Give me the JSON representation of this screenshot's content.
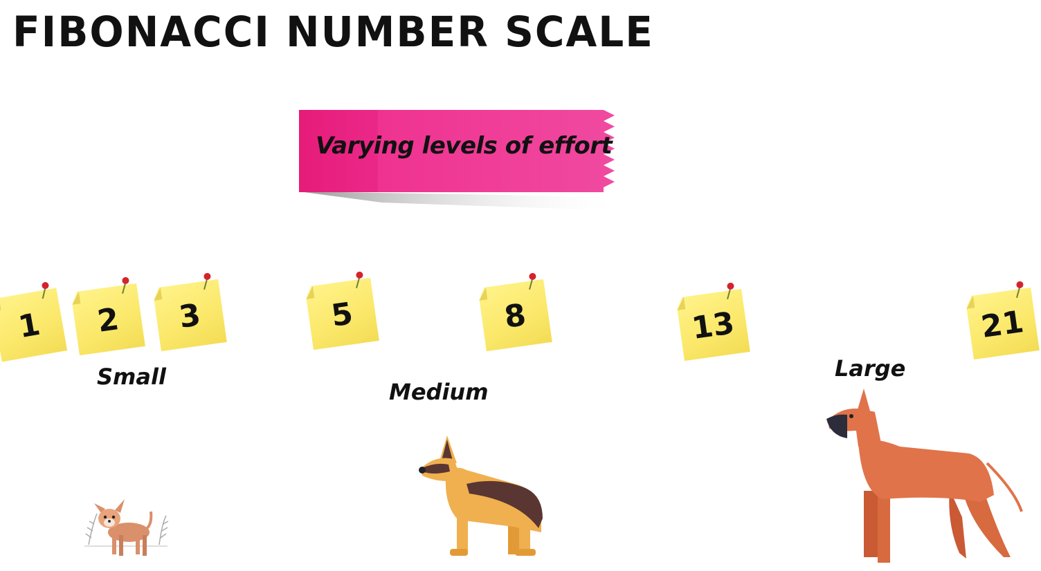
{
  "title": "FIBONACCI NUMBER SCALE",
  "banner": {
    "text": "Varying levels of effort",
    "color": "#ee2b8e"
  },
  "notes": [
    {
      "value": "1"
    },
    {
      "value": "2"
    },
    {
      "value": "3"
    },
    {
      "value": "5"
    },
    {
      "value": "8"
    },
    {
      "value": "13"
    },
    {
      "value": "21"
    }
  ],
  "sizes": {
    "small": "Small",
    "medium": "Medium",
    "large": "Large"
  },
  "icons": {
    "pin": "push-pin-icon",
    "small_dog": "chihuahua-icon",
    "medium_dog": "german-shepherd-icon",
    "large_dog": "great-dane-icon"
  }
}
